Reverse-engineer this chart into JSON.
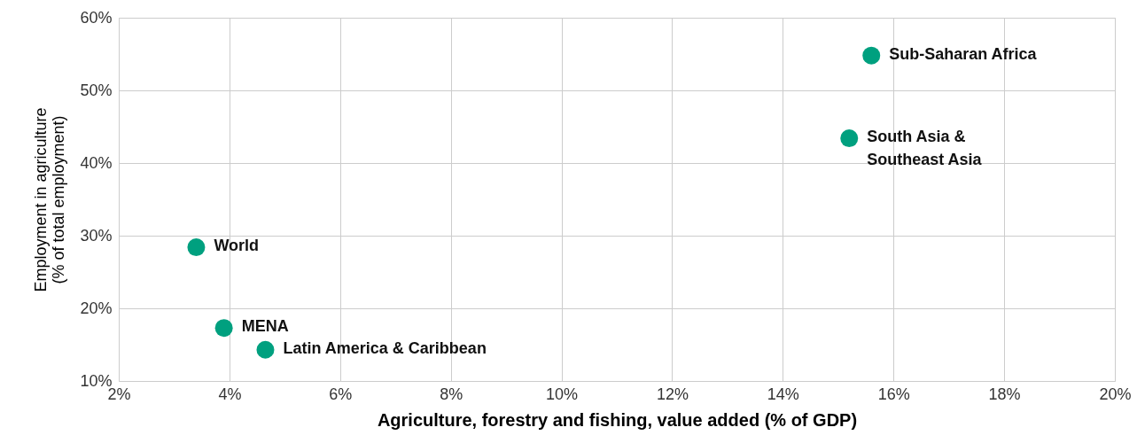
{
  "chart_data": {
    "type": "scatter",
    "xlabel": "Agriculture, forestry and fishing, value added (% of GDP)",
    "ylabel": "Employment in agriculture\n(% of total employment)",
    "xlim": [
      2,
      20
    ],
    "ylim": [
      10,
      60
    ],
    "xticks": [
      {
        "value": 2,
        "label": "2%"
      },
      {
        "value": 4,
        "label": "4%"
      },
      {
        "value": 6,
        "label": "6%"
      },
      {
        "value": 8,
        "label": "8%"
      },
      {
        "value": 10,
        "label": "10%"
      },
      {
        "value": 12,
        "label": "12%"
      },
      {
        "value": 14,
        "label": "14%"
      },
      {
        "value": 16,
        "label": "16%"
      },
      {
        "value": 18,
        "label": "18%"
      },
      {
        "value": 20,
        "label": "20%"
      }
    ],
    "yticks": [
      {
        "value": 10,
        "label": "10%"
      },
      {
        "value": 20,
        "label": "20%"
      },
      {
        "value": 30,
        "label": "30%"
      },
      {
        "value": 40,
        "label": "40%"
      },
      {
        "value": 50,
        "label": "50%"
      },
      {
        "value": 60,
        "label": "60%"
      }
    ],
    "grid": true,
    "legend": false,
    "marker": "circle",
    "series": [
      {
        "name": "Sub-Saharan Africa",
        "color": "#00a07f",
        "x": [
          15.6
        ],
        "values": [
          54.8
        ]
      },
      {
        "name": "South Asia &\nSoutheast Asia",
        "color": "#00a07f",
        "x": [
          15.2
        ],
        "values": [
          43.4
        ]
      },
      {
        "name": "World",
        "color": "#00a07f",
        "x": [
          3.4
        ],
        "values": [
          28.4
        ]
      },
      {
        "name": "MENA",
        "color": "#00a07f",
        "x": [
          3.9
        ],
        "values": [
          17.3
        ]
      },
      {
        "name": "Latin America & Caribbean",
        "color": "#00a07f",
        "x": [
          4.65
        ],
        "values": [
          14.3
        ]
      }
    ]
  }
}
